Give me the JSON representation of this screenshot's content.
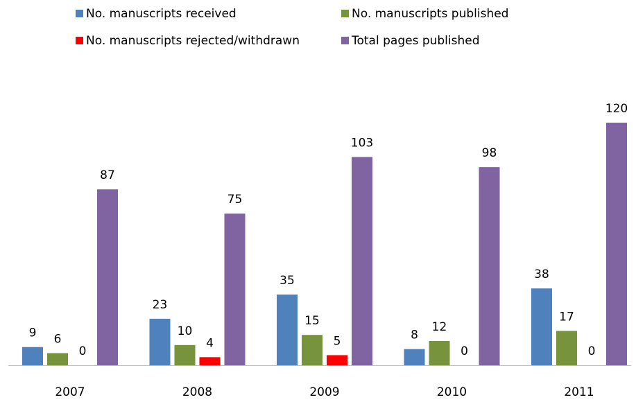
{
  "chart_data": {
    "type": "bar",
    "categories": [
      "2007",
      "2008",
      "2009",
      "2010",
      "2011"
    ],
    "series": [
      {
        "name": "No. manuscripts received",
        "color": "#4f81bd",
        "values": [
          9,
          23,
          35,
          8,
          38
        ]
      },
      {
        "name": "No. manuscripts published",
        "color": "#77933c",
        "values": [
          6,
          10,
          15,
          12,
          17
        ]
      },
      {
        "name": "No. manuscripts rejected/withdrawn",
        "color": "#ff0000",
        "values": [
          0,
          4,
          5,
          0,
          0
        ]
      },
      {
        "name": "Total pages published",
        "color": "#8064a2",
        "values": [
          87,
          75,
          103,
          98,
          120
        ]
      }
    ]
  }
}
